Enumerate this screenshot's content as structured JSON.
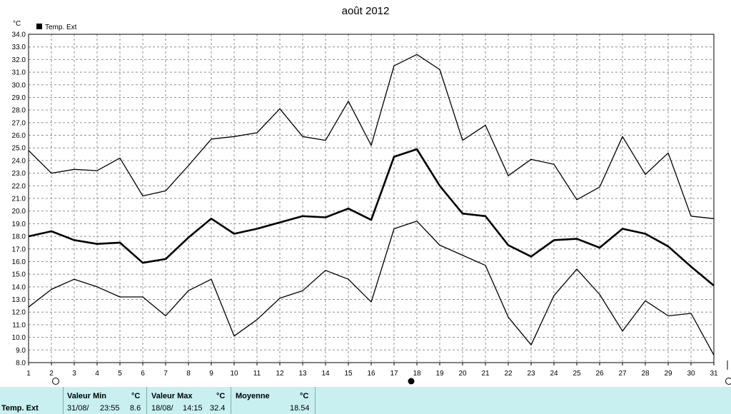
{
  "chart_data": {
    "type": "line",
    "title": "août 2012",
    "ylabel": "°C",
    "ylim": [
      8.0,
      34.0
    ],
    "y_ticks": [
      "8.0",
      "9.0",
      "10.0",
      "11.0",
      "12.0",
      "13.0",
      "14.0",
      "15.0",
      "16.0",
      "17.0",
      "18.0",
      "19.0",
      "20.0",
      "21.0",
      "22.0",
      "23.0",
      "24.0",
      "25.0",
      "26.0",
      "27.0",
      "28.0",
      "29.0",
      "30.0",
      "31.0",
      "32.0",
      "33.0",
      "34.0"
    ],
    "x": [
      1,
      2,
      3,
      4,
      5,
      6,
      7,
      8,
      9,
      10,
      11,
      12,
      13,
      14,
      15,
      16,
      17,
      18,
      19,
      20,
      21,
      22,
      23,
      24,
      25,
      26,
      27,
      28,
      29,
      30,
      31
    ],
    "legend": "Temp. Ext",
    "legend_position": "top-left",
    "grid": true,
    "series": [
      {
        "values": [
          24.8,
          23.0,
          23.3,
          23.2,
          24.2,
          21.2,
          21.6,
          23.6,
          25.7,
          25.9,
          26.2,
          28.1,
          25.9,
          25.6,
          28.7,
          25.2,
          31.5,
          32.4,
          31.2,
          25.6,
          26.8,
          22.8,
          24.1,
          23.7,
          20.9,
          21.9,
          25.9,
          22.9,
          24.6,
          19.6,
          19.4
        ]
      },
      {
        "values": [
          18.0,
          18.4,
          17.7,
          17.4,
          17.5,
          15.9,
          16.2,
          17.9,
          19.4,
          18.2,
          18.6,
          19.1,
          19.6,
          19.5,
          20.2,
          19.3,
          24.3,
          24.9,
          22.0,
          19.8,
          19.6,
          17.3,
          16.4,
          17.7,
          17.8,
          17.1,
          18.6,
          18.2,
          17.2,
          15.6,
          14.1
        ]
      },
      {
        "values": [
          12.4,
          13.8,
          14.6,
          14.0,
          13.2,
          13.2,
          11.7,
          13.7,
          14.6,
          10.1,
          11.4,
          13.1,
          13.7,
          15.3,
          14.6,
          12.8,
          18.6,
          19.2,
          17.3,
          16.5,
          15.7,
          11.6,
          9.4,
          13.3,
          15.4,
          13.4,
          10.5,
          12.9,
          11.7,
          11.9,
          8.6
        ]
      }
    ]
  },
  "stats": {
    "row_label": "Temp. Ext",
    "min_header": "Valeur Min",
    "min_unit": "°C",
    "min_date": "31/08/",
    "min_time": "23:55",
    "min_value": "8.6",
    "max_header": "Valeur Max",
    "max_unit": "°C",
    "max_date": "18/08/",
    "max_time": "14:15",
    "max_value": "32.4",
    "avg_header": "Moyenne",
    "avg_unit": "°C",
    "avg_value": "18.54"
  }
}
